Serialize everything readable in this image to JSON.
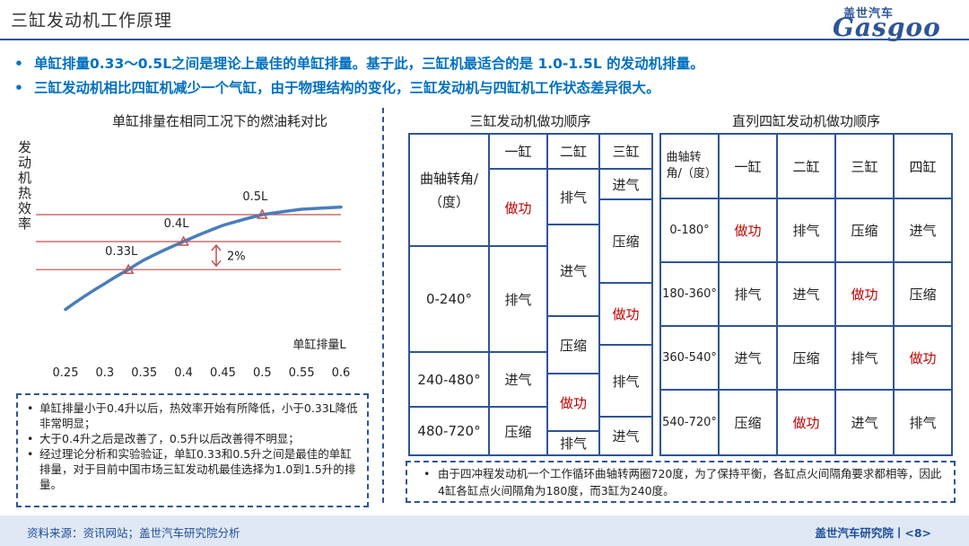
{
  "header": {
    "title": "三缸发动机工作原理",
    "logo_cn": "盖世汽车",
    "logo_en": "Gasgoo"
  },
  "bullets": [
    "单缸排量0.33～0.5L之间是理论上最佳的单缸排量。基于此，三缸机最适合的是 1.0-1.5L 的发动机排量。",
    "三缸发动机相比四缸机减少一个气缸，由于物理结构的变化，三缸发动机与四缸机工作状态差异很大。"
  ],
  "chart_data": {
    "type": "line",
    "title": "单缸排量在相同工况下的燃油耗对比",
    "ylabel": "发动机热效率",
    "xlabel": "单缸排量L",
    "x_ticks": [
      "0.25",
      "0.3",
      "0.35",
      "0.4",
      "0.45",
      "0.5",
      "0.55",
      "0.6"
    ],
    "xlim": [
      0.25,
      0.6
    ],
    "ylim": [
      0,
      10
    ],
    "series": [
      {
        "name": "热效率",
        "x": [
          0.25,
          0.3,
          0.33,
          0.35,
          0.4,
          0.45,
          0.5,
          0.55,
          0.6
        ],
        "y": [
          2.1,
          3.3,
          3.95,
          4.4,
          5.25,
          6.0,
          6.5,
          6.75,
          6.85
        ]
      }
    ],
    "markers": [
      {
        "label": "0.33L",
        "x": 0.33,
        "y": 3.95
      },
      {
        "label": "0.4L",
        "x": 0.4,
        "y": 5.25
      },
      {
        "label": "0.5L",
        "x": 0.5,
        "y": 6.5
      }
    ],
    "reference_lines": [
      3.95,
      5.25,
      6.5
    ],
    "annotation": "2%",
    "grid": false
  },
  "left_notes": [
    "单缸排量小于0.4升以后，热效率开始有所降低，小于0.33L降低非常明显；",
    "大于0.4升之后是改善了，0.5升以后改善得不明显；",
    "经过理论分析和实验验证，单缸0.33和0.5升之间是最佳的单缸排量，对于目前中国市场三缸发动机最佳选择为1.0到1.5升的排量。"
  ],
  "three_cyl": {
    "title": "三缸发动机做功顺序",
    "col_headers": [
      "一缸",
      "二缸",
      "三缸"
    ],
    "corner": "曲轴转角/（度）",
    "angles": [
      "0-240°",
      "240-480°",
      "480-720°"
    ],
    "cyl1": [
      "做功",
      "排气",
      "进气",
      "压缩"
    ],
    "cyl2": [
      "排气",
      "进气",
      "压缩",
      "做功",
      "排气"
    ],
    "cyl3": [
      "进气",
      "压缩",
      "做功",
      "排气",
      "进气"
    ]
  },
  "four_cyl": {
    "title": "直列四缸发动机做功顺序",
    "corner": "曲轴转角/（度）",
    "col_headers": [
      "一缸",
      "二缸",
      "三缸",
      "四缸"
    ],
    "rows": [
      {
        "angle": "0-180°",
        "cells": [
          "做功",
          "排气",
          "压缩",
          "进气"
        ]
      },
      {
        "angle": "180-360°",
        "cells": [
          "排气",
          "进气",
          "做功",
          "压缩"
        ]
      },
      {
        "angle": "360-540°",
        "cells": [
          "进气",
          "压缩",
          "排气",
          "做功"
        ]
      },
      {
        "angle": "540-720°",
        "cells": [
          "压缩",
          "做功",
          "进气",
          "排气"
        ]
      }
    ]
  },
  "right_note": "由于四冲程发动机一个工作循环曲轴转两圈720度，为了保持平衡，各缸点火间隔角要求都相等，因此4缸各缸点火间隔角为180度，而3缸为240度。",
  "footer": {
    "source": "资料来源：资讯网站；盖世汽车研究院分析",
    "org": "盖世汽车研究院丨<8>"
  },
  "colors": {
    "accent": "#2f5597",
    "bullet": "#0070c0",
    "curve": "#4a7ebb",
    "ref_line": "#c0504d",
    "stroke_red": "#c00000"
  }
}
